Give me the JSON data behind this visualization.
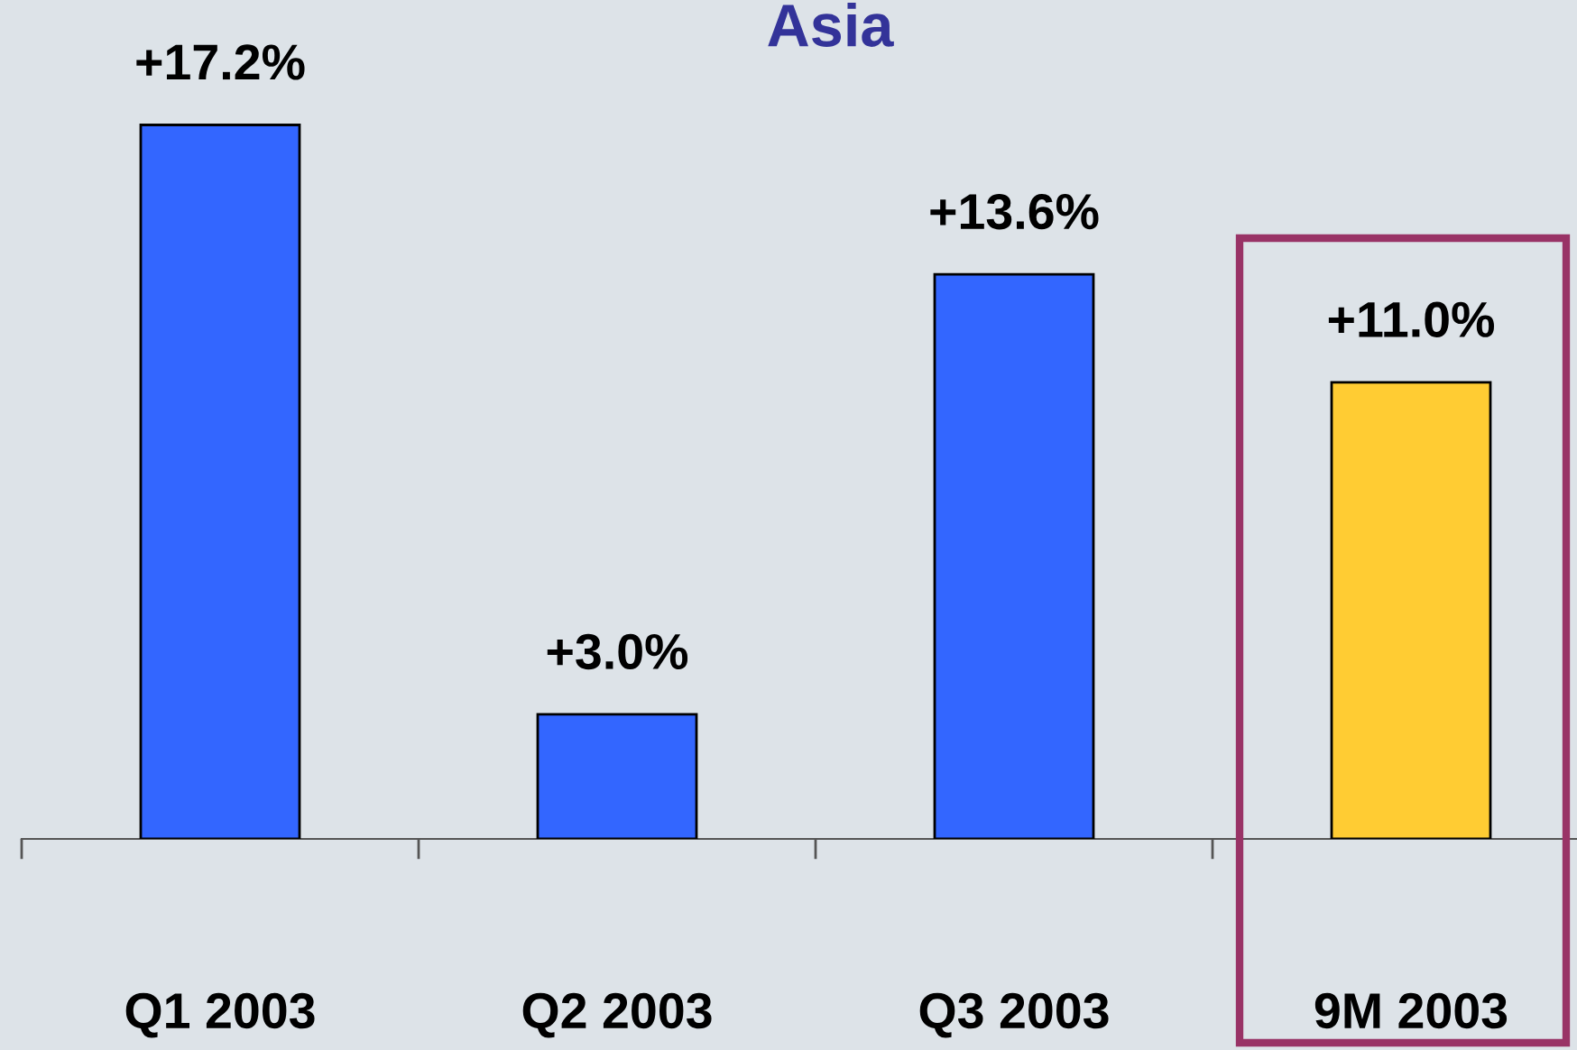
{
  "chart_data": {
    "type": "bar",
    "title": "Asia",
    "categories": [
      "Q1 2003",
      "Q2 2003",
      "Q3 2003",
      "9M 2003"
    ],
    "values": [
      17.2,
      3.0,
      13.6,
      11.0
    ],
    "colors": [
      "#3366ff",
      "#3366ff",
      "#3366ff",
      "#ffcc33"
    ],
    "value_labels": [
      "+17.2%",
      "+3.0%",
      "+13.6%",
      "+11.0%"
    ],
    "grid": false,
    "legend": false
  }
}
